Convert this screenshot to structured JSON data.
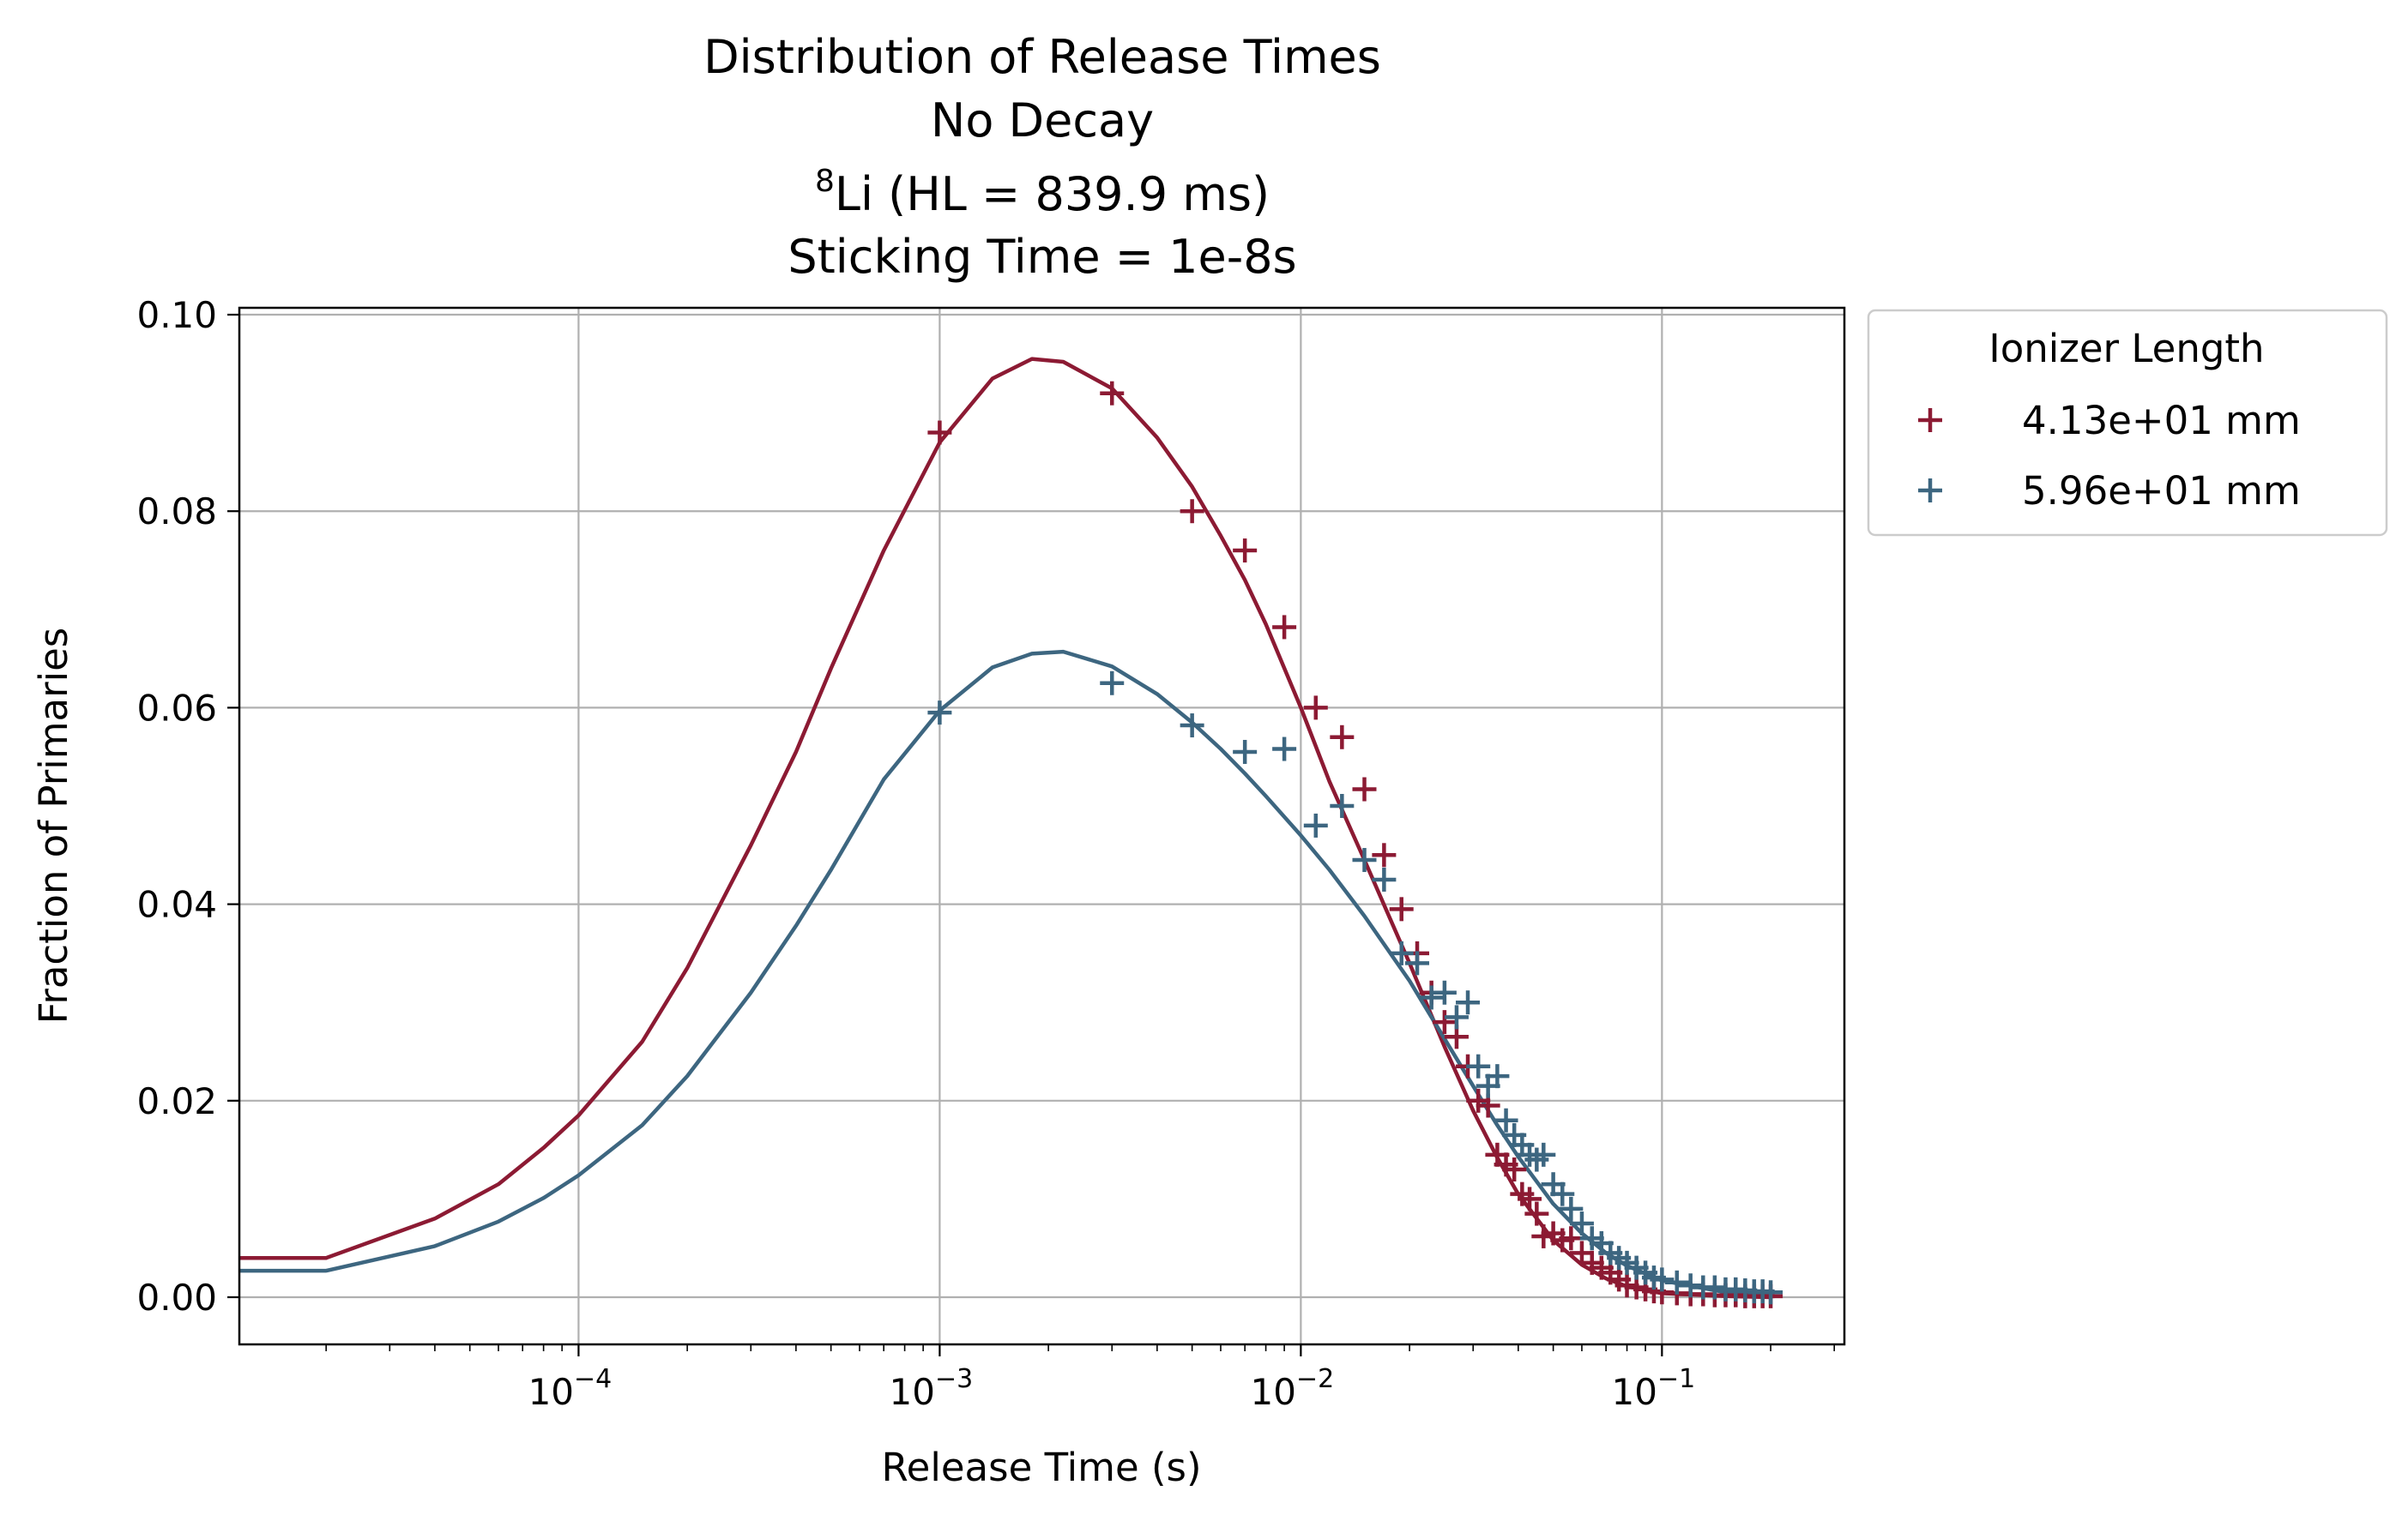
{
  "chart_data": {
    "type": "scatter",
    "title_lines": {
      "line1": "Distribution of Release Times",
      "line2": "No Decay",
      "line3_sup": "8",
      "line3_rest": "Li (HL = 839.9 ms)",
      "line4": "Sticking Time = 1e-8s"
    },
    "xlabel": "Release Time (s)",
    "ylabel": "Fraction of Primaries",
    "xscale": "log",
    "xlim": [
      1.15e-05,
      0.32
    ],
    "ylim": [
      -0.0048,
      0.1007
    ],
    "grid": true,
    "x_ticks": [
      {
        "value": 0.0001,
        "base": "10",
        "exp": "−4"
      },
      {
        "value": 0.001,
        "base": "10",
        "exp": "−3"
      },
      {
        "value": 0.01,
        "base": "10",
        "exp": "−2"
      },
      {
        "value": 0.1,
        "base": "10",
        "exp": "−1"
      }
    ],
    "y_ticks": [
      {
        "value": 0.0,
        "label": "0.00"
      },
      {
        "value": 0.02,
        "label": "0.02"
      },
      {
        "value": 0.04,
        "label": "0.04"
      },
      {
        "value": 0.06,
        "label": "0.06"
      },
      {
        "value": 0.08,
        "label": "0.08"
      },
      {
        "value": 0.1,
        "label": "0.10"
      }
    ],
    "legend": {
      "title": "Ionizer Length",
      "position": "outside-right-top"
    },
    "series": [
      {
        "name": "4.13e+01 mm",
        "color": "#8c1a33",
        "fit_curve": {
          "x": [
            1e-05,
            2e-05,
            4e-05,
            6e-05,
            8e-05,
            0.0001,
            0.00015,
            0.0002,
            0.0003,
            0.0004,
            0.0005,
            0.0007,
            0.001,
            0.0014,
            0.0018,
            0.0022,
            0.003,
            0.004,
            0.005,
            0.006,
            0.007,
            0.008,
            0.01,
            0.012,
            0.015,
            0.02,
            0.025,
            0.03,
            0.035,
            0.04,
            0.05,
            0.06,
            0.07,
            0.08,
            0.1,
            0.15,
            0.2
          ],
          "y": [
            0.004,
            0.004,
            0.008,
            0.0115,
            0.0152,
            0.0185,
            0.026,
            0.0335,
            0.046,
            0.0555,
            0.064,
            0.076,
            0.087,
            0.0935,
            0.0955,
            0.0952,
            0.0925,
            0.0875,
            0.0825,
            0.0775,
            0.073,
            0.0685,
            0.06,
            0.0525,
            0.0445,
            0.034,
            0.0255,
            0.019,
            0.0142,
            0.0105,
            0.0058,
            0.0033,
            0.0019,
            0.0011,
            0.0004,
            0.0001,
            0.0
          ]
        },
        "points": {
          "x": [
            0.001,
            0.003,
            0.005,
            0.007,
            0.009,
            0.011,
            0.013,
            0.015,
            0.017,
            0.019,
            0.021,
            0.023,
            0.025,
            0.027,
            0.029,
            0.031,
            0.033,
            0.035,
            0.037,
            0.039,
            0.041,
            0.043,
            0.045,
            0.047,
            0.05,
            0.053,
            0.056,
            0.06,
            0.064,
            0.068,
            0.072,
            0.076,
            0.08,
            0.085,
            0.09,
            0.095,
            0.1,
            0.11,
            0.12,
            0.13,
            0.14,
            0.15,
            0.16,
            0.17,
            0.18,
            0.19,
            0.2
          ],
          "y": [
            0.088,
            0.092,
            0.08,
            0.076,
            0.0682,
            0.06,
            0.057,
            0.0517,
            0.045,
            0.0395,
            0.035,
            0.031,
            0.028,
            0.0265,
            0.0235,
            0.02,
            0.0195,
            0.0145,
            0.0135,
            0.013,
            0.0105,
            0.01,
            0.0085,
            0.0062,
            0.0065,
            0.0058,
            0.006,
            0.0045,
            0.0035,
            0.003,
            0.0025,
            0.0018,
            0.0012,
            0.001,
            0.0008,
            0.0006,
            0.0005,
            0.0004,
            0.0003,
            0.0003,
            0.0002,
            0.0002,
            0.0002,
            0.0001,
            0.0001,
            0.0001,
            0.0001
          ]
        }
      },
      {
        "name": "5.96e+01 mm",
        "color": "#3d6680",
        "fit_curve": {
          "x": [
            1e-05,
            2e-05,
            4e-05,
            6e-05,
            8e-05,
            0.0001,
            0.00015,
            0.0002,
            0.0003,
            0.0004,
            0.0005,
            0.0007,
            0.001,
            0.0014,
            0.0018,
            0.0022,
            0.003,
            0.004,
            0.005,
            0.006,
            0.007,
            0.008,
            0.01,
            0.012,
            0.015,
            0.02,
            0.025,
            0.03,
            0.035,
            0.04,
            0.05,
            0.06,
            0.07,
            0.08,
            0.1,
            0.15,
            0.2
          ],
          "y": [
            0.0027,
            0.0027,
            0.0052,
            0.0077,
            0.0101,
            0.0124,
            0.0175,
            0.0225,
            0.031,
            0.0378,
            0.0435,
            0.0527,
            0.0597,
            0.0641,
            0.0655,
            0.0657,
            0.0642,
            0.0614,
            0.0585,
            0.0558,
            0.0533,
            0.051,
            0.047,
            0.0435,
            0.0388,
            0.0322,
            0.0263,
            0.0215,
            0.0175,
            0.0143,
            0.0095,
            0.0065,
            0.0045,
            0.0032,
            0.0017,
            0.0005,
            0.0002
          ]
        },
        "points": {
          "x": [
            0.001,
            0.003,
            0.005,
            0.007,
            0.009,
            0.011,
            0.013,
            0.015,
            0.017,
            0.019,
            0.021,
            0.023,
            0.025,
            0.027,
            0.029,
            0.031,
            0.033,
            0.035,
            0.037,
            0.039,
            0.041,
            0.043,
            0.045,
            0.047,
            0.05,
            0.053,
            0.056,
            0.06,
            0.064,
            0.068,
            0.072,
            0.076,
            0.08,
            0.085,
            0.09,
            0.095,
            0.1,
            0.11,
            0.12,
            0.13,
            0.14,
            0.15,
            0.16,
            0.17,
            0.18,
            0.19,
            0.2
          ],
          "y": [
            0.0595,
            0.0625,
            0.0582,
            0.0555,
            0.0558,
            0.048,
            0.05,
            0.0445,
            0.0425,
            0.035,
            0.034,
            0.0305,
            0.031,
            0.0285,
            0.03,
            0.0235,
            0.0215,
            0.0225,
            0.018,
            0.0165,
            0.0155,
            0.0145,
            0.014,
            0.0145,
            0.0115,
            0.0105,
            0.009,
            0.0075,
            0.006,
            0.0055,
            0.0045,
            0.004,
            0.0035,
            0.003,
            0.0025,
            0.002,
            0.0018,
            0.0015,
            0.0012,
            0.001,
            0.001,
            0.0008,
            0.0008,
            0.0007,
            0.0006,
            0.0006,
            0.0005
          ]
        }
      }
    ]
  }
}
